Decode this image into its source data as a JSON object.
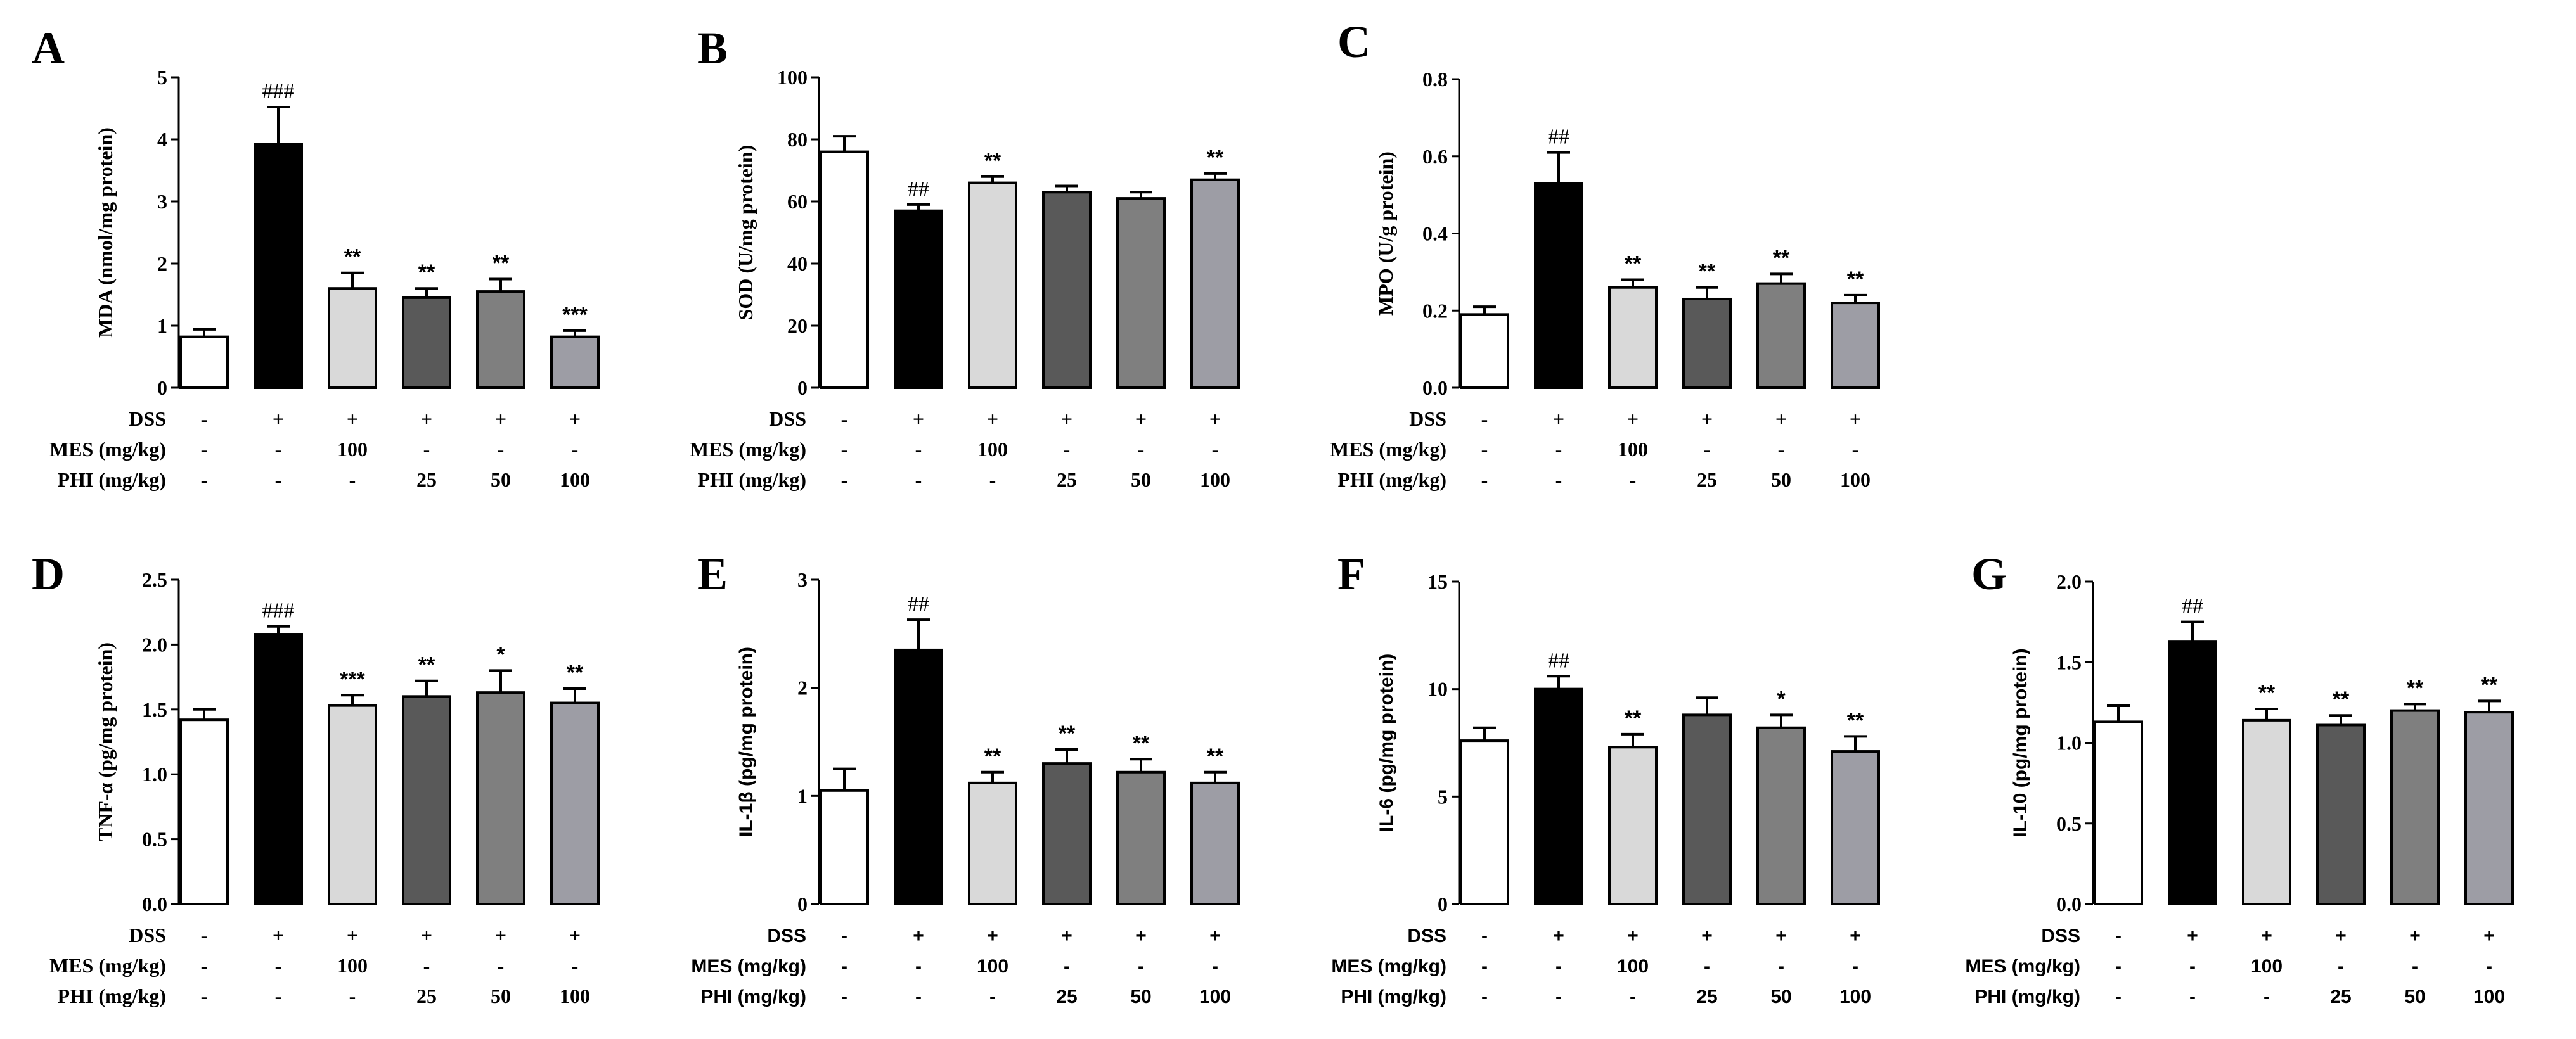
{
  "figure": {
    "group_rows": {
      "labels": [
        "DSS",
        "MES (mg/kg)",
        "PHI (mg/kg)"
      ],
      "dss": [
        "-",
        "+",
        "+",
        "+",
        "+",
        "+"
      ],
      "mes": [
        "-",
        "-",
        "100",
        "-",
        "-",
        "-"
      ],
      "phi": [
        "-",
        "-",
        "-",
        "25",
        "50",
        "100"
      ]
    },
    "bar_fills": [
      "#ffffff",
      "#000000",
      "#d9d9d9",
      "#595959",
      "#7f7f7f",
      "#9d9da5"
    ]
  },
  "chart_data": [
    {
      "panel": "A",
      "type": "bar",
      "ylabel": "MDA (nmol/mg protein)",
      "ylim": [
        0,
        5
      ],
      "yticks": [
        0,
        1,
        2,
        3,
        4,
        5
      ],
      "ytick_labels": [
        "0",
        "1",
        "2",
        "3",
        "4",
        "5"
      ],
      "values": [
        0.82,
        3.92,
        1.6,
        1.45,
        1.55,
        0.82
      ],
      "errors": [
        0.12,
        0.6,
        0.25,
        0.15,
        0.2,
        0.1
      ],
      "annotations": [
        "",
        "###",
        "**",
        "**",
        "**",
        "***"
      ]
    },
    {
      "panel": "B",
      "type": "bar",
      "ylabel": "SOD (U/mg protein)",
      "ylim": [
        0,
        100
      ],
      "yticks": [
        0,
        20,
        40,
        60,
        80,
        100
      ],
      "ytick_labels": [
        "0",
        "20",
        "40",
        "60",
        "80",
        "100"
      ],
      "values": [
        76,
        57,
        66,
        63,
        61,
        67
      ],
      "errors": [
        5,
        2,
        2,
        2,
        2,
        2
      ],
      "annotations": [
        "",
        "##",
        "**",
        "",
        "",
        "**"
      ]
    },
    {
      "panel": "C",
      "type": "bar",
      "ylabel": "MPO (U/g protein)",
      "ylim": [
        0,
        0.8
      ],
      "yticks": [
        0,
        0.2,
        0.4,
        0.6,
        0.8
      ],
      "ytick_labels": [
        "0.0",
        "0.2",
        "0.4",
        "0.6",
        "0.8"
      ],
      "values": [
        0.19,
        0.53,
        0.26,
        0.23,
        0.27,
        0.22
      ],
      "errors": [
        0.02,
        0.08,
        0.02,
        0.03,
        0.025,
        0.02
      ],
      "annotations": [
        "",
        "##",
        "**",
        "**",
        "**",
        "**"
      ]
    },
    {
      "panel": "D",
      "type": "bar",
      "ylabel": "TNF-α (pg/mg protein)",
      "ylim": [
        0,
        2.5
      ],
      "yticks": [
        0,
        0.5,
        1.0,
        1.5,
        2.0,
        2.5
      ],
      "ytick_labels": [
        "0.0",
        "0.5",
        "1.0",
        "1.5",
        "2.0",
        "2.5"
      ],
      "values": [
        1.42,
        2.08,
        1.53,
        1.6,
        1.63,
        1.55
      ],
      "errors": [
        0.08,
        0.06,
        0.08,
        0.12,
        0.17,
        0.11
      ],
      "annotations": [
        "",
        "###",
        "***",
        "**",
        "*",
        "**"
      ]
    },
    {
      "panel": "E",
      "type": "bar",
      "ylabel": "IL-1β (pg/mg protein)",
      "ylim": [
        0,
        3
      ],
      "yticks": [
        0,
        1,
        2,
        3
      ],
      "ytick_labels": [
        "0",
        "1",
        "2",
        "3"
      ],
      "values": [
        1.05,
        2.35,
        1.12,
        1.3,
        1.22,
        1.12
      ],
      "errors": [
        0.2,
        0.28,
        0.1,
        0.13,
        0.12,
        0.1
      ],
      "annotations": [
        "",
        "##",
        "**",
        "**",
        "**",
        "**"
      ]
    },
    {
      "panel": "F",
      "type": "bar",
      "ylabel": "IL-6 (pg/mg protein)",
      "ylim": [
        0,
        15
      ],
      "yticks": [
        0,
        5,
        10,
        15
      ],
      "ytick_labels": [
        "0",
        "5",
        "10",
        "15"
      ],
      "values": [
        7.6,
        10.0,
        7.3,
        8.8,
        8.2,
        7.1
      ],
      "errors": [
        0.6,
        0.6,
        0.6,
        0.8,
        0.6,
        0.7
      ],
      "annotations": [
        "",
        "##",
        "**",
        "",
        "*",
        "**"
      ]
    },
    {
      "panel": "G",
      "type": "bar",
      "ylabel": "IL-10 (pg/mg protein)",
      "ylim": [
        0,
        2.0
      ],
      "yticks": [
        0,
        0.5,
        1.0,
        1.5,
        2.0
      ],
      "ytick_labels": [
        "0.0",
        "0.5",
        "1.0",
        "1.5",
        "2.0"
      ],
      "values": [
        1.13,
        1.63,
        1.14,
        1.11,
        1.2,
        1.19
      ],
      "errors": [
        0.1,
        0.12,
        0.07,
        0.06,
        0.04,
        0.07
      ],
      "annotations": [
        "",
        "##",
        "**",
        "**",
        "**",
        "**"
      ]
    }
  ]
}
